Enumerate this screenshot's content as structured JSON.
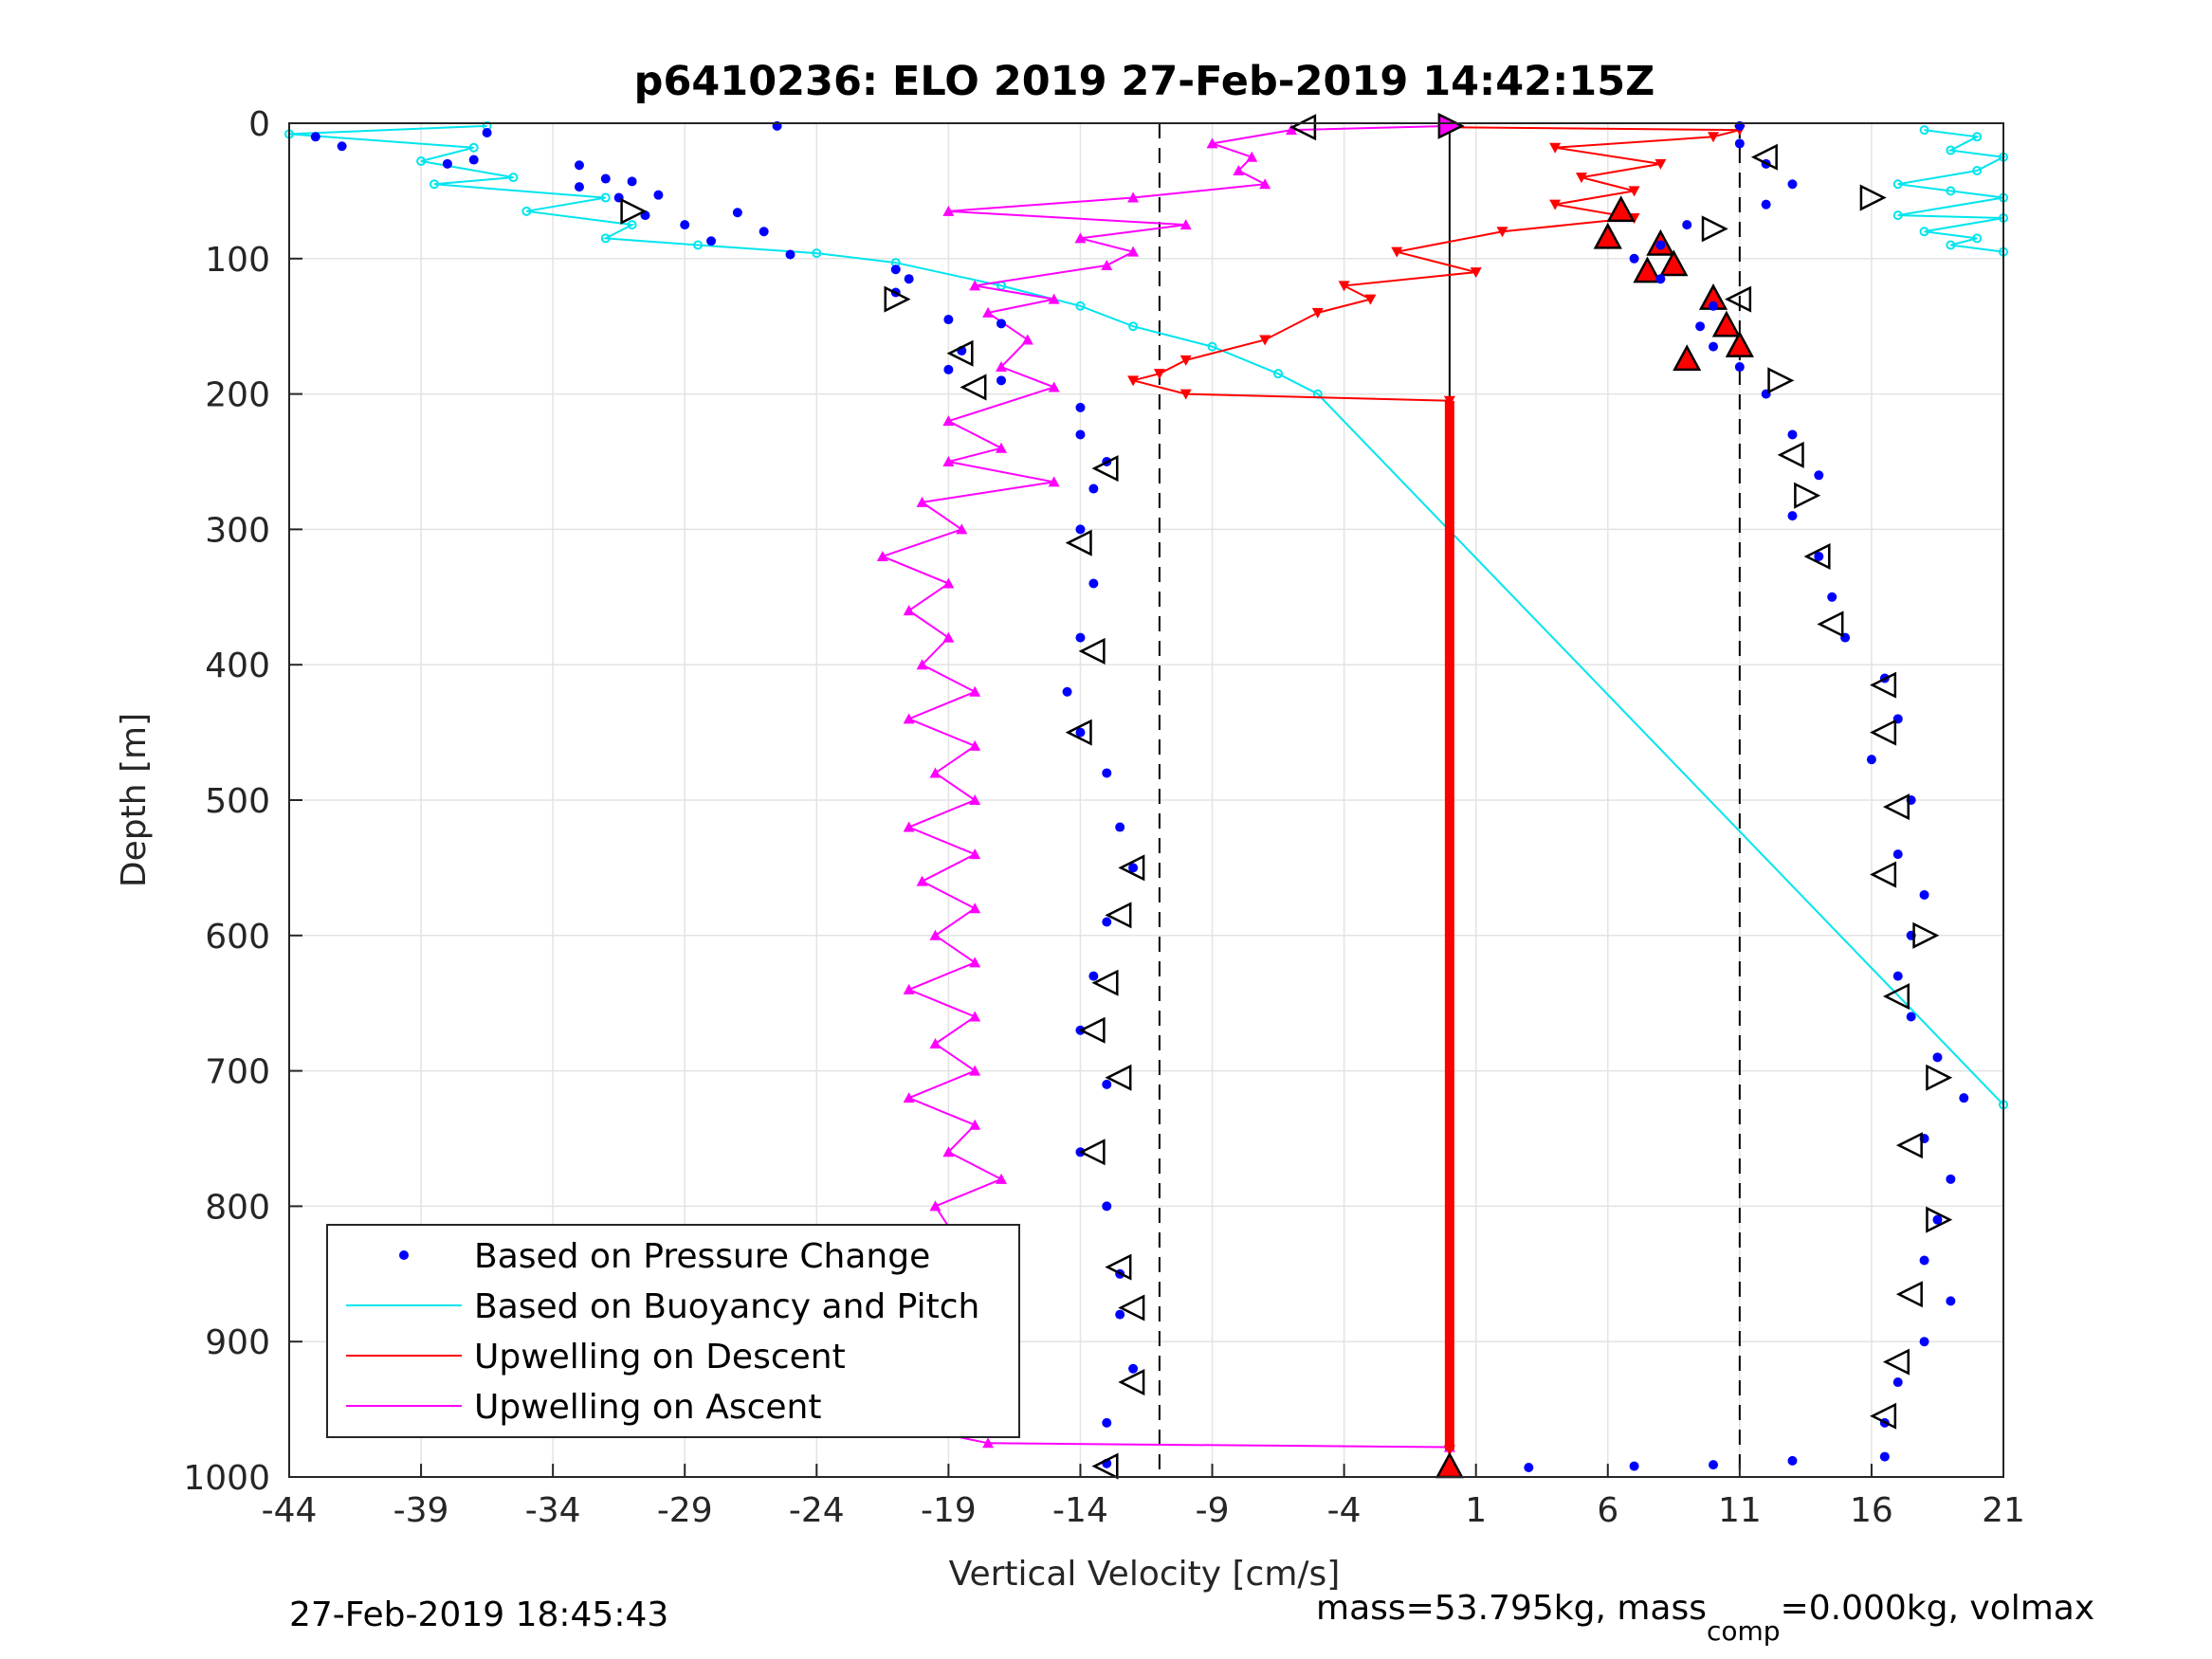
{
  "chart_data": {
    "type": "scatter",
    "title": "p6410236: ELO 2019 27-Feb-2019 14:42:15Z",
    "xlabel": "Vertical Velocity [cm/s]",
    "ylabel": "Depth [m]",
    "xlim": [
      -44,
      21
    ],
    "ylim": [
      0,
      1000
    ],
    "y_reversed": true,
    "grid": true,
    "legend_position": "bottom-left",
    "xticks": [
      -44,
      -39,
      -34,
      -29,
      -24,
      -19,
      -14,
      -9,
      -4,
      1,
      6,
      11,
      16,
      21
    ],
    "yticks": [
      0,
      100,
      200,
      300,
      400,
      500,
      600,
      700,
      800,
      900,
      1000
    ],
    "xtick_labels": [
      "-44",
      "-39",
      "-34",
      "-29",
      "-24",
      "-19",
      "-14",
      "-9",
      "-4",
      "1",
      "6",
      "11",
      "16",
      "21"
    ],
    "ytick_labels": [
      "0",
      "100",
      "200",
      "300",
      "400",
      "500",
      "600",
      "700",
      "800",
      "900",
      "1000"
    ],
    "reference_lines": {
      "dashed_x": [
        -11,
        11
      ],
      "solid_x": [
        0
      ]
    },
    "legend": [
      {
        "label": "Based on Pressure Change",
        "color": "#0000ff",
        "marker": "dot"
      },
      {
        "label": "Based on Buoyancy and Pitch",
        "color": "#00e5ee",
        "marker": "line"
      },
      {
        "label": "Upwelling on Descent",
        "color": "#ff0000",
        "marker": "line"
      },
      {
        "label": "Upwelling on Ascent",
        "color": "#ff00ff",
        "marker": "line"
      }
    ],
    "series": [
      {
        "name": "Based on Pressure Change",
        "color": "#0000ff",
        "points_descent": [
          [
            -25.5,
            2
          ],
          [
            -36.5,
            7
          ],
          [
            -43,
            10
          ],
          [
            -42,
            17
          ],
          [
            -37,
            27
          ],
          [
            -38,
            30
          ],
          [
            -33,
            31
          ],
          [
            -32,
            41
          ],
          [
            -31,
            43
          ],
          [
            -33,
            47
          ],
          [
            -30,
            53
          ],
          [
            -31.5,
            55
          ],
          [
            -27,
            66
          ],
          [
            -30.5,
            68
          ],
          [
            -29,
            75
          ],
          [
            -26,
            80
          ],
          [
            -28,
            87
          ],
          [
            -25,
            97
          ],
          [
            -21,
            108
          ],
          [
            -20.5,
            115
          ],
          [
            -21,
            125
          ],
          [
            -19,
            145
          ],
          [
            -17,
            148
          ],
          [
            -18.5,
            168
          ],
          [
            -19,
            182
          ],
          [
            -17,
            190
          ],
          [
            -14,
            210
          ],
          [
            -14,
            230
          ],
          [
            -13,
            250
          ],
          [
            -13.5,
            270
          ],
          [
            -14,
            300
          ],
          [
            -13.5,
            340
          ],
          [
            -14,
            380
          ],
          [
            -14.5,
            420
          ],
          [
            -14,
            450
          ],
          [
            -13,
            480
          ],
          [
            -12.5,
            520
          ],
          [
            -12,
            550
          ],
          [
            -13,
            590
          ],
          [
            -13.5,
            630
          ],
          [
            -14,
            670
          ],
          [
            -13,
            710
          ],
          [
            -14,
            760
          ],
          [
            -13,
            800
          ],
          [
            -12.5,
            850
          ],
          [
            -12.5,
            880
          ],
          [
            -12,
            920
          ],
          [
            -13,
            960
          ],
          [
            -13,
            990
          ]
        ],
        "points_ascent": [
          [
            3,
            993
          ],
          [
            7,
            992
          ],
          [
            10,
            991
          ],
          [
            13,
            988
          ],
          [
            16.5,
            985
          ],
          [
            16.5,
            960
          ],
          [
            17,
            930
          ],
          [
            18,
            900
          ],
          [
            19,
            870
          ],
          [
            18,
            840
          ],
          [
            18.5,
            810
          ],
          [
            19,
            780
          ],
          [
            18,
            750
          ],
          [
            19.5,
            720
          ],
          [
            18.5,
            690
          ],
          [
            17.5,
            660
          ],
          [
            17,
            630
          ],
          [
            17.5,
            600
          ],
          [
            18,
            570
          ],
          [
            17,
            540
          ],
          [
            17.5,
            500
          ],
          [
            16,
            470
          ],
          [
            17,
            440
          ],
          [
            16.5,
            410
          ],
          [
            15,
            380
          ],
          [
            14.5,
            350
          ],
          [
            14,
            320
          ],
          [
            13,
            290
          ],
          [
            14,
            260
          ],
          [
            13,
            230
          ],
          [
            12,
            200
          ],
          [
            11,
            180
          ],
          [
            10,
            165
          ],
          [
            9.5,
            150
          ],
          [
            10,
            135
          ],
          [
            8,
            115
          ],
          [
            7,
            100
          ],
          [
            8,
            90
          ],
          [
            9,
            75
          ],
          [
            12,
            60
          ],
          [
            13,
            45
          ],
          [
            12,
            30
          ],
          [
            11,
            15
          ],
          [
            11,
            2
          ]
        ]
      },
      {
        "name": "Based on Buoyancy and Pitch",
        "color": "#00e5ee",
        "points": [
          [
            -36.5,
            2
          ],
          [
            -44,
            8
          ],
          [
            -37,
            18
          ],
          [
            -39,
            28
          ],
          [
            -35.5,
            40
          ],
          [
            -38.5,
            45
          ],
          [
            -32,
            55
          ],
          [
            -35,
            65
          ],
          [
            -31,
            75
          ],
          [
            -32,
            85
          ],
          [
            -28.5,
            90
          ],
          [
            -24,
            96
          ],
          [
            -21,
            103
          ],
          [
            -17,
            120
          ],
          [
            -14,
            135
          ],
          [
            -12,
            150
          ],
          [
            -9,
            165
          ],
          [
            -6.5,
            185
          ],
          [
            -5,
            200
          ],
          [
            21,
            725
          ]
        ],
        "points_surface": [
          [
            18,
            5
          ],
          [
            20,
            10
          ],
          [
            19,
            20
          ],
          [
            21,
            25
          ],
          [
            20,
            35
          ],
          [
            17,
            45
          ],
          [
            19,
            50
          ],
          [
            21,
            55
          ],
          [
            17,
            68
          ],
          [
            21,
            70
          ],
          [
            18,
            80
          ],
          [
            20,
            85
          ],
          [
            19,
            90
          ],
          [
            21,
            95
          ]
        ]
      },
      {
        "name": "Upwelling on Descent",
        "color": "#ff0000",
        "points": [
          [
            0,
            3
          ],
          [
            11,
            5
          ],
          [
            10,
            10
          ],
          [
            4,
            18
          ],
          [
            8,
            30
          ],
          [
            5,
            40
          ],
          [
            7,
            50
          ],
          [
            4,
            60
          ],
          [
            7,
            70
          ],
          [
            2,
            80
          ],
          [
            -2,
            95
          ],
          [
            1,
            110
          ],
          [
            -4,
            120
          ],
          [
            -3,
            130
          ],
          [
            -5,
            140
          ],
          [
            -7,
            160
          ],
          [
            -10,
            175
          ],
          [
            -11,
            185
          ],
          [
            -12,
            190
          ],
          [
            -10,
            200
          ],
          [
            0,
            205
          ],
          [
            0,
            980
          ]
        ],
        "triangles_up": [
          [
            6.5,
            65
          ],
          [
            6,
            85
          ],
          [
            8,
            90
          ],
          [
            8.5,
            105
          ],
          [
            7.5,
            110
          ],
          [
            10,
            130
          ],
          [
            10.5,
            150
          ],
          [
            11,
            165
          ],
          [
            9,
            175
          ],
          [
            0,
            993
          ]
        ]
      },
      {
        "name": "Upwelling on Ascent",
        "color": "#ff00ff",
        "points": [
          [
            0,
            978
          ],
          [
            -17.5,
            975
          ],
          [
            -20,
            965
          ],
          [
            -18.5,
            950
          ],
          [
            -21,
            940
          ],
          [
            -18,
            925
          ],
          [
            -20,
            905
          ],
          [
            -17,
            890
          ],
          [
            -18,
            870
          ],
          [
            -20,
            850
          ],
          [
            -18.5,
            830
          ],
          [
            -19.5,
            800
          ],
          [
            -17,
            780
          ],
          [
            -19,
            760
          ],
          [
            -18,
            740
          ],
          [
            -20.5,
            720
          ],
          [
            -18,
            700
          ],
          [
            -19.5,
            680
          ],
          [
            -18,
            660
          ],
          [
            -20.5,
            640
          ],
          [
            -18,
            620
          ],
          [
            -19.5,
            600
          ],
          [
            -18,
            580
          ],
          [
            -20,
            560
          ],
          [
            -18,
            540
          ],
          [
            -20.5,
            520
          ],
          [
            -18,
            500
          ],
          [
            -19.5,
            480
          ],
          [
            -18,
            460
          ],
          [
            -20.5,
            440
          ],
          [
            -18,
            420
          ],
          [
            -20,
            400
          ],
          [
            -19,
            380
          ],
          [
            -20.5,
            360
          ],
          [
            -19,
            340
          ],
          [
            -21.5,
            320
          ],
          [
            -18.5,
            300
          ],
          [
            -20,
            280
          ],
          [
            -15,
            265
          ],
          [
            -19,
            250
          ],
          [
            -17,
            240
          ],
          [
            -19,
            220
          ],
          [
            -15,
            195
          ],
          [
            -17,
            180
          ],
          [
            -16,
            160
          ],
          [
            -17.5,
            140
          ],
          [
            -15,
            130
          ],
          [
            -18,
            120
          ],
          [
            -13,
            105
          ],
          [
            -12,
            95
          ],
          [
            -14,
            85
          ],
          [
            -10,
            75
          ],
          [
            -19,
            65
          ],
          [
            -12,
            55
          ],
          [
            -7,
            45
          ],
          [
            -8,
            35
          ],
          [
            -7.5,
            25
          ],
          [
            -9,
            15
          ],
          [
            -6,
            5
          ],
          [
            0,
            2
          ]
        ]
      }
    ],
    "footer_left": "27-Feb-2019 18:45:43",
    "footer_right_parts": [
      "mass=53.795kg, mass",
      "comp",
      "=0.000kg, volmax"
    ]
  }
}
